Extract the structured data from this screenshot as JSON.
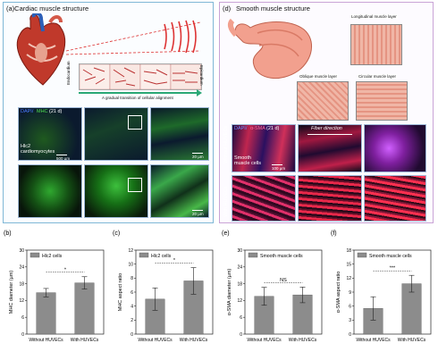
{
  "panel_a": {
    "label": "(a)Cardiac muscle structure",
    "endocardium": "Endocardium",
    "epicardium": "Epicardium",
    "transition_caption": "A gradual transition of cellular alignment",
    "row_without": "Without HUVECs",
    "row_with": "With HUVECs",
    "stain_dapi": "DAPI/",
    "stain_mhc": "MHC",
    "stain_day": "(21 d)",
    "cell_label": "Hlc2\ncardiomyocytes",
    "scale_500": "500 µm",
    "scale_20": "20 µm"
  },
  "panel_d": {
    "label": "(d)",
    "title": "Smooth muscle structure",
    "longitudinal": "Longitudinal muscle layer",
    "oblique": "Oblique muscle layer",
    "circular": "Circular muscle layer",
    "row_without": "Without HUVECs",
    "row_with": "With HUVECs",
    "stain_dapi": "DAPI/",
    "stain_sma": "α-SMA",
    "stain_day": "(21 d)",
    "fiber_direction": "Fiber direction",
    "cell_label": "Smooth\nmuscle cells",
    "scale_100": "100 µm"
  },
  "colors": {
    "panel_a_border": "#7fb7d6",
    "panel_d_border": "#c9a3d6",
    "bar_fill": "#8c8c8c",
    "dapi": "#3d6cff",
    "mhc": "#3bd43b",
    "sma": "#ff2d6f"
  },
  "chart_data": [
    {
      "id": "b",
      "panel_label": "(b)",
      "type": "bar",
      "legend": "Hlc2 cells",
      "categories": [
        "Without HUVECs",
        "With HUVECs"
      ],
      "values": [
        14.8,
        18.3
      ],
      "errors": [
        1.5,
        2.2
      ],
      "ylabel": "MHC diameter (µm)",
      "ylim": [
        0,
        30
      ],
      "yticks": [
        0,
        6,
        12,
        18,
        24,
        30
      ],
      "significance": "*"
    },
    {
      "id": "c",
      "panel_label": "(c)",
      "type": "bar",
      "legend": "Hlc2 cells",
      "categories": [
        "Without HUVECs",
        "With HUVECs"
      ],
      "values": [
        5.0,
        7.6
      ],
      "errors": [
        1.6,
        1.9
      ],
      "ylabel": "MHC aspect ratio",
      "ylim": [
        0,
        12
      ],
      "yticks": [
        0,
        2,
        4,
        6,
        8,
        10,
        12
      ],
      "significance": "*"
    },
    {
      "id": "e",
      "panel_label": "(e)",
      "type": "bar",
      "legend": "Smooth muscle cells",
      "categories": [
        "Without HUVECs",
        "With HUVECs"
      ],
      "values": [
        13.5,
        14.0
      ],
      "errors": [
        3.2,
        2.8
      ],
      "ylabel": "α-SMA diameter (µm)",
      "ylim": [
        0,
        30
      ],
      "yticks": [
        0,
        6,
        12,
        18,
        24,
        30
      ],
      "significance": "NS"
    },
    {
      "id": "f",
      "panel_label": "(f)",
      "type": "bar",
      "legend": "Smooth muscle cells",
      "categories": [
        "Without HUVECs",
        "With HUVECs"
      ],
      "values": [
        5.5,
        10.8
      ],
      "errors": [
        2.5,
        1.8
      ],
      "ylabel": "α-SMA aspect ratio",
      "ylim": [
        0,
        18
      ],
      "yticks": [
        0,
        3,
        6,
        9,
        12,
        15,
        18
      ],
      "significance": "***"
    }
  ]
}
